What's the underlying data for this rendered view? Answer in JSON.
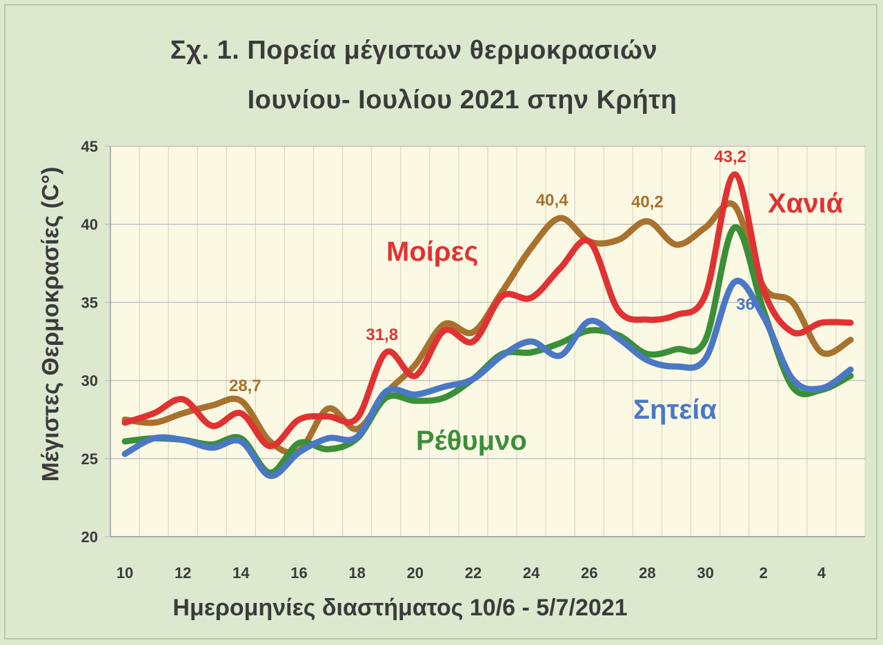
{
  "chart_data": {
    "type": "line",
    "title": "Σχ. 1. Πορεία μέγιστων θερμοκρασιών",
    "subtitle": "Ιουνίου- Ιουλίου 2021 στην Κρήτη",
    "xlabel": "Ημερομηνίες  διαστήματος 10/6 - 5/7/2021",
    "ylabel": "Μέγιστες Θερμοκρασίες (C°)",
    "ylim": [
      20,
      45
    ],
    "yticks": [
      "20",
      "25",
      "30",
      "35",
      "40",
      "45"
    ],
    "x": [
      10,
      11,
      12,
      13,
      14,
      15,
      16,
      17,
      18,
      19,
      20,
      21,
      22,
      23,
      24,
      25,
      26,
      27,
      28,
      29,
      30,
      1,
      2,
      3,
      4,
      5
    ],
    "xticks": [
      "10",
      "12",
      "14",
      "16",
      "18",
      "20",
      "22",
      "24",
      "26",
      "28",
      "30",
      "2",
      "4"
    ],
    "grid": true,
    "series": [
      {
        "name": "Χανιά",
        "color": "#e03232",
        "values": [
          27.3,
          27.9,
          28.8,
          27.1,
          27.9,
          25.8,
          27.5,
          27.7,
          27.6,
          31.8,
          30.3,
          33.2,
          32.5,
          35.4,
          35.3,
          37.2,
          38.9,
          34.5,
          33.9,
          34.2,
          35.5,
          43.2,
          35.8,
          33.1,
          33.7,
          33.7
        ]
      },
      {
        "name": "Μοίρες",
        "color": "#a8712d",
        "values": [
          27.5,
          27.3,
          27.9,
          28.4,
          28.7,
          26.1,
          25.5,
          28.2,
          26.9,
          29.2,
          31.0,
          33.6,
          33.1,
          35.7,
          38.5,
          40.4,
          38.9,
          39.0,
          40.2,
          38.7,
          39.8,
          41.2,
          36.0,
          35.0,
          31.8,
          32.6
        ]
      },
      {
        "name": "Ρέθυμνο",
        "color": "#3a8f38",
        "values": [
          26.1,
          26.3,
          26.2,
          25.9,
          26.3,
          24.1,
          26.0,
          25.6,
          26.3,
          28.9,
          28.7,
          28.9,
          30.1,
          31.7,
          31.8,
          32.4,
          33.2,
          32.9,
          31.7,
          32.0,
          32.6,
          39.8,
          34.5,
          29.6,
          29.4,
          30.3
        ]
      },
      {
        "name": "Σητεία",
        "color": "#4a78c4",
        "values": [
          25.3,
          26.3,
          26.2,
          25.7,
          26.1,
          23.9,
          25.4,
          26.3,
          26.4,
          29.3,
          29.1,
          29.6,
          30.1,
          31.6,
          32.5,
          31.6,
          33.8,
          32.7,
          31.3,
          30.9,
          31.4,
          36.3,
          34.1,
          30.1,
          29.5,
          30.7
        ]
      }
    ],
    "annotations": [
      {
        "text": "28,7",
        "series": "Μοίρες",
        "index": 4
      },
      {
        "text": "31,8",
        "series": "Χανιά",
        "index": 9
      },
      {
        "text": "40,4",
        "series": "Μοίρες",
        "index": 15
      },
      {
        "text": "40,2",
        "series": "Μοίρες",
        "index": 18
      },
      {
        "text": "43,2",
        "series": "Χανιά",
        "index": 21
      },
      {
        "text": "36",
        "series": "Σητεία",
        "index": 21
      }
    ]
  }
}
